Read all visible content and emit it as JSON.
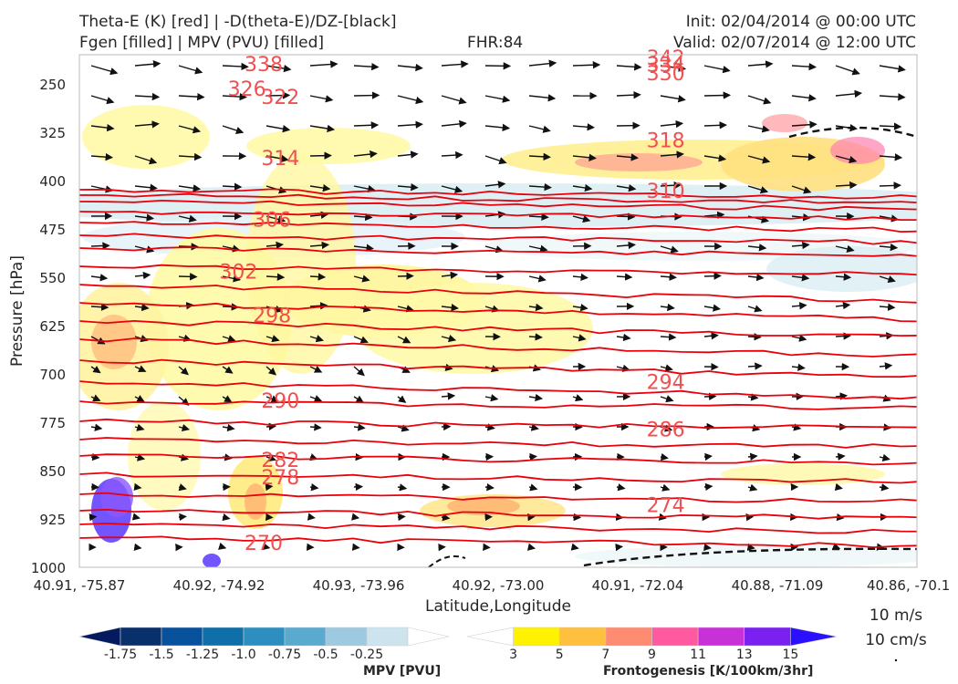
{
  "header": {
    "left_line1": "Theta-E (K) [red] | -D(theta-E)/DZ-[black]",
    "left_line2": "Fgen [filled] | MPV (PVU) [filled]",
    "center": "FHR:84",
    "right_line1": "Init: 02/04/2014 @ 00:00 UTC",
    "right_line2": "Valid: 02/07/2014 @ 12:00 UTC"
  },
  "chart_data": {
    "type": "cross-section",
    "xlabel": "Latitude,Longitude",
    "ylabel": "Pressure [hPa]",
    "x_ticks": [
      "40.91, -75.87",
      "40.92, -74.92",
      "40.93, -73.96",
      "40.92, -73.00",
      "40.91, -72.04",
      "40.88, -71.09",
      "40.86, -70.1"
    ],
    "y_ticks": [
      250,
      325,
      400,
      475,
      550,
      625,
      700,
      775,
      850,
      925,
      1000
    ],
    "ylim": [
      1000,
      205
    ],
    "theta_e_labels": [
      {
        "value": "338",
        "x": 0.22,
        "p": 219
      },
      {
        "value": "326",
        "x": 0.2,
        "p": 257
      },
      {
        "value": "322",
        "x": 0.24,
        "p": 270
      },
      {
        "value": "314",
        "x": 0.24,
        "p": 365
      },
      {
        "value": "306",
        "x": 0.23,
        "p": 460
      },
      {
        "value": "302",
        "x": 0.19,
        "p": 541
      },
      {
        "value": "298",
        "x": 0.23,
        "p": 609
      },
      {
        "value": "290",
        "x": 0.24,
        "p": 741
      },
      {
        "value": "282",
        "x": 0.24,
        "p": 833
      },
      {
        "value": "278",
        "x": 0.24,
        "p": 860
      },
      {
        "value": "270",
        "x": 0.22,
        "p": 962
      },
      {
        "value": "330",
        "x": 0.7,
        "p": 233
      },
      {
        "value": "334",
        "x": 0.7,
        "p": 220
      },
      {
        "value": "342",
        "x": 0.7,
        "p": 209
      },
      {
        "value": "318",
        "x": 0.7,
        "p": 337
      },
      {
        "value": "310",
        "x": 0.7,
        "p": 416
      },
      {
        "value": "294",
        "x": 0.7,
        "p": 712
      },
      {
        "value": "286",
        "x": 0.7,
        "p": 786
      },
      {
        "value": "274",
        "x": 0.7,
        "p": 903
      }
    ],
    "mpv_colorbar": {
      "label": "MPV [PVU]",
      "ticks": [
        "-1.75",
        "-1.5",
        "-1.25",
        "-1.0",
        "-0.75",
        "-0.5",
        "-0.25"
      ],
      "colors": [
        "#031a5e",
        "#08306b",
        "#08519c",
        "#0f6fa8",
        "#2c8fbf",
        "#5aa9cf",
        "#9ecae1",
        "#cde4ef",
        "#ffffff"
      ]
    },
    "fgen_colorbar": {
      "label": "Frontogenesis [K/100km/3hr]",
      "ticks": [
        "3",
        "5",
        "7",
        "9",
        "11",
        "13",
        "15"
      ],
      "colors": [
        "#ffffff",
        "#fff200",
        "#ffc040",
        "#ff8c70",
        "#ff5aa0",
        "#c830d8",
        "#7a20f0",
        "#2a10ff"
      ]
    },
    "legend": {
      "line1": "10 m/s",
      "line2": "10 cm/s"
    }
  }
}
